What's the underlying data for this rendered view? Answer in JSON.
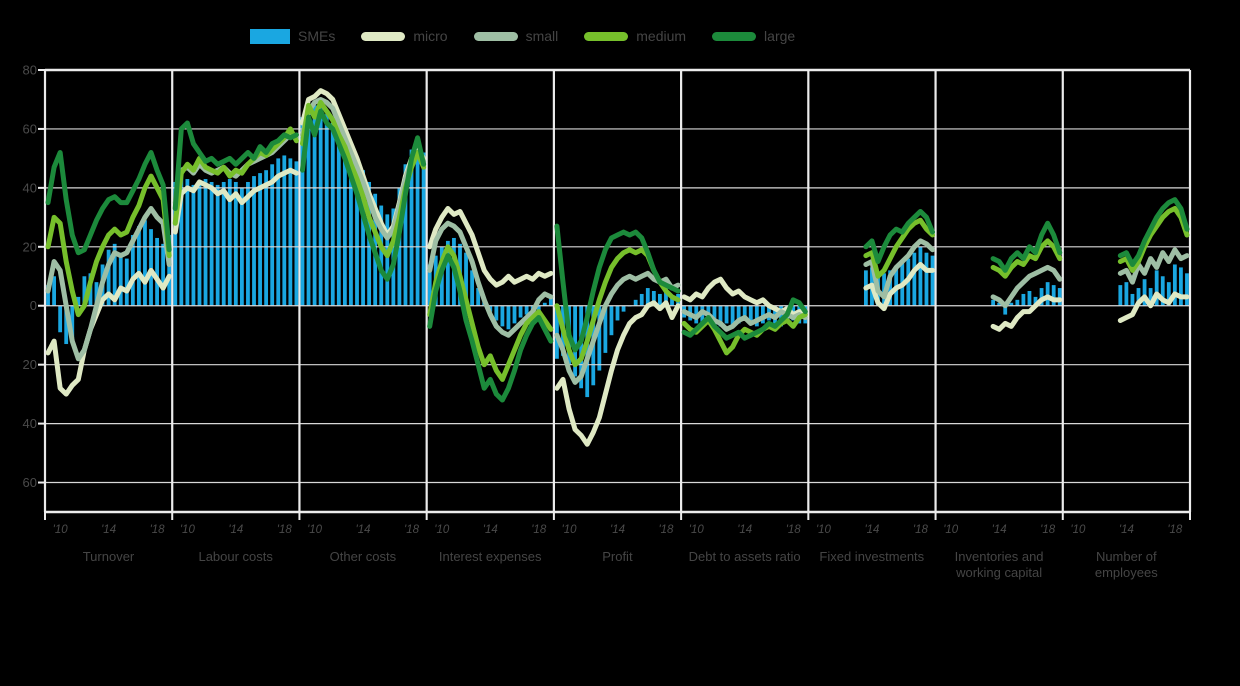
{
  "chart_data": {
    "type": "bar+line small multiples",
    "legend": [
      {
        "label": "SMEs",
        "color": "#1aa7e1",
        "swatch": "bar"
      },
      {
        "label": "micro",
        "color": "#dfe9c4",
        "swatch": "line"
      },
      {
        "label": "small",
        "color": "#9ebea4",
        "swatch": "line"
      },
      {
        "label": "medium",
        "color": "#76bf2b",
        "swatch": "line"
      },
      {
        "label": "large",
        "color": "#1c8a3b",
        "swatch": "line"
      }
    ],
    "colors": {
      "SMEs": "#1aa7e1",
      "micro": "#dfe9c4",
      "small": "#9ebea4",
      "medium": "#76bf2b",
      "large": "#1c8a3b",
      "grid": "#d8d8d8",
      "border": "#ececec",
      "axis_text": "#4a4a4a",
      "background": "#000000"
    },
    "y_axis": {
      "min": -70,
      "max": 80,
      "tick_values": [
        80,
        60,
        40,
        20,
        0,
        -20,
        -40,
        -60
      ],
      "tick_labels": [
        "80",
        "60",
        "40",
        "20",
        "0",
        "20",
        "40",
        "60"
      ]
    },
    "x_ticks": [
      {
        "label": "'10",
        "index": 2
      },
      {
        "label": "'14",
        "index": 10
      },
      {
        "label": "'18",
        "index": 18
      }
    ],
    "n_points": 21,
    "panels": [
      {
        "title": "Turnover",
        "SMEs": [
          7,
          10,
          -9,
          -13,
          -11,
          3,
          10,
          11,
          8,
          14,
          19,
          21,
          18,
          16,
          24,
          27,
          29,
          26,
          23,
          21,
          24
        ],
        "micro": [
          -16,
          -12,
          -28,
          -30,
          -27,
          -25,
          -15,
          -8,
          -3,
          2,
          4,
          2,
          6,
          5,
          9,
          11,
          8,
          12,
          9,
          6,
          10
        ],
        "small": [
          5,
          15,
          12,
          0,
          -12,
          -18,
          -15,
          -8,
          0,
          8,
          14,
          18,
          17,
          18,
          22,
          26,
          30,
          33,
          30,
          28,
          14
        ],
        "medium": [
          20,
          30,
          28,
          15,
          5,
          -3,
          0,
          8,
          15,
          20,
          24,
          26,
          24,
          25,
          30,
          34,
          40,
          44,
          40,
          36,
          17
        ],
        "large": [
          35,
          47,
          52,
          36,
          24,
          18,
          19,
          24,
          29,
          33,
          36,
          37,
          35,
          35,
          39,
          43,
          48,
          52,
          46,
          41,
          19
        ]
      },
      {
        "title": "Labour costs",
        "SMEs": [
          42,
          44,
          43,
          41,
          42,
          43,
          42,
          41,
          42,
          43,
          42,
          40,
          42,
          44,
          45,
          46,
          48,
          50,
          51,
          50,
          49
        ],
        "micro": [
          25,
          38,
          40,
          39,
          42,
          41,
          40,
          38,
          39,
          36,
          38,
          35,
          37,
          39,
          40,
          41,
          42,
          44,
          45,
          46,
          45
        ],
        "small": [
          35,
          46,
          47,
          45,
          48,
          46,
          45,
          46,
          47,
          45,
          44,
          46,
          48,
          49,
          50,
          51,
          52,
          54,
          56,
          58,
          57
        ],
        "medium": [
          28,
          45,
          48,
          46,
          50,
          47,
          46,
          45,
          47,
          44,
          46,
          45,
          48,
          50,
          52,
          51,
          53,
          55,
          57,
          60,
          56
        ],
        "large": [
          33,
          60,
          62,
          55,
          52,
          49,
          50,
          48,
          49,
          50,
          48,
          50,
          52,
          50,
          54,
          52,
          55,
          56,
          58,
          57,
          58
        ]
      },
      {
        "title": "Other costs",
        "SMEs": [
          64,
          66,
          68,
          67,
          65,
          62,
          59,
          57,
          54,
          50,
          46,
          42,
          38,
          34,
          31,
          33,
          40,
          48,
          53,
          55,
          52
        ],
        "micro": [
          62,
          70,
          71,
          73,
          72,
          70,
          65,
          60,
          55,
          50,
          44,
          38,
          33,
          28,
          24,
          27,
          35,
          44,
          50,
          53,
          50
        ],
        "small": [
          58,
          66,
          69,
          70,
          69,
          67,
          62,
          57,
          52,
          47,
          42,
          36,
          30,
          26,
          23,
          26,
          34,
          43,
          49,
          52,
          49
        ],
        "medium": [
          55,
          68,
          64,
          69,
          66,
          63,
          58,
          54,
          48,
          43,
          37,
          30,
          25,
          20,
          17,
          22,
          30,
          40,
          47,
          52,
          47
        ],
        "large": [
          46,
          64,
          58,
          66,
          62,
          60,
          55,
          50,
          44,
          38,
          31,
          24,
          18,
          12,
          9,
          14,
          25,
          38,
          50,
          57,
          48
        ]
      },
      {
        "title": "Interest expenses",
        "SMEs": [
          14,
          17,
          20,
          22,
          23,
          21,
          18,
          12,
          6,
          2,
          -2,
          -5,
          -7,
          -8,
          -6,
          -4,
          -3,
          -2,
          -2,
          1,
          3
        ],
        "micro": [
          20,
          26,
          30,
          33,
          31,
          32,
          28,
          24,
          18,
          12,
          9,
          7,
          8,
          10,
          8,
          9,
          10,
          9,
          11,
          10,
          11
        ],
        "small": [
          12,
          22,
          26,
          28,
          27,
          25,
          20,
          15,
          8,
          2,
          -3,
          -7,
          -9,
          -10,
          -8,
          -6,
          -4,
          -2,
          2,
          4,
          3
        ],
        "medium": [
          -3,
          8,
          15,
          20,
          17,
          10,
          2,
          -6,
          -14,
          -20,
          -17,
          -22,
          -25,
          -20,
          -15,
          -10,
          -6,
          -4,
          -2,
          -5,
          -8
        ],
        "large": [
          -7,
          5,
          12,
          17,
          13,
          5,
          -5,
          -12,
          -20,
          -28,
          -25,
          -30,
          -32,
          -28,
          -22,
          -15,
          -10,
          -6,
          -4,
          -8,
          -12
        ]
      },
      {
        "title": "Profit",
        "SMEs": [
          -18,
          -17,
          -20,
          -24,
          -28,
          -31,
          -27,
          -22,
          -16,
          -10,
          -5,
          -2,
          0,
          2,
          4,
          6,
          5,
          4,
          6,
          3,
          4
        ],
        "micro": [
          -28,
          -25,
          -35,
          -42,
          -44,
          -47,
          -43,
          -38,
          -30,
          -22,
          -15,
          -10,
          -6,
          -4,
          -3,
          0,
          1,
          -1,
          1,
          -4,
          0
        ],
        "small": [
          -10,
          -15,
          -22,
          -26,
          -24,
          -18,
          -12,
          -6,
          0,
          4,
          7,
          9,
          10,
          9,
          10,
          11,
          9,
          8,
          9,
          6,
          7
        ],
        "medium": [
          0,
          -8,
          -15,
          -20,
          -18,
          -12,
          -5,
          2,
          8,
          13,
          16,
          18,
          19,
          18,
          19,
          17,
          12,
          8,
          5,
          3,
          2
        ],
        "large": [
          27,
          8,
          -10,
          -15,
          -12,
          -4,
          5,
          13,
          19,
          23,
          24,
          25,
          24,
          25,
          23,
          18,
          12,
          8,
          7,
          6,
          5
        ]
      },
      {
        "title": "Debt to assets ratio",
        "SMEs": [
          -4,
          -5,
          -6,
          -7,
          -6,
          -8,
          -7,
          -6,
          -7,
          -6,
          -5,
          -6,
          -7,
          -6,
          -5,
          -6,
          -7,
          -6,
          -5,
          -6,
          -6
        ],
        "micro": [
          3,
          2,
          4,
          3,
          6,
          8,
          9,
          6,
          4,
          5,
          3,
          2,
          1,
          2,
          0,
          -1,
          -2,
          -1,
          -3,
          -2,
          -2
        ],
        "small": [
          -2,
          -3,
          -4,
          -2,
          -3,
          -5,
          -6,
          -8,
          -7,
          -5,
          -4,
          -6,
          -5,
          -4,
          -3,
          -4,
          -2,
          -3,
          -4,
          -3,
          -4
        ],
        "medium": [
          -6,
          -8,
          -9,
          -7,
          -5,
          -8,
          -12,
          -16,
          -14,
          -10,
          -8,
          -9,
          -10,
          -8,
          -7,
          -8,
          -6,
          -5,
          -7,
          -4,
          -3
        ],
        "large": [
          -9,
          -10,
          -8,
          -6,
          -4,
          -7,
          -9,
          -11,
          -10,
          -9,
          -11,
          -10,
          -9,
          -8,
          -6,
          -7,
          -5,
          -3,
          2,
          1,
          -2
        ]
      },
      {
        "title": "Fixed investments",
        "SMEs": [
          null,
          null,
          null,
          null,
          null,
          null,
          null,
          null,
          null,
          12,
          13,
          10,
          11,
          12,
          13,
          15,
          16,
          18,
          20,
          18,
          17
        ],
        "micro": [
          null,
          null,
          null,
          null,
          null,
          null,
          null,
          null,
          null,
          6,
          7,
          1,
          -1,
          4,
          6,
          7,
          9,
          12,
          14,
          12,
          12
        ],
        "small": [
          null,
          null,
          null,
          null,
          null,
          null,
          null,
          null,
          null,
          14,
          15,
          5,
          3,
          10,
          13,
          15,
          17,
          20,
          22,
          21,
          19
        ],
        "medium": [
          null,
          null,
          null,
          null,
          null,
          null,
          null,
          null,
          null,
          17,
          18,
          10,
          12,
          16,
          20,
          23,
          26,
          28,
          29,
          26,
          24
        ],
        "large": [
          null,
          null,
          null,
          null,
          null,
          null,
          null,
          null,
          null,
          20,
          22,
          15,
          20,
          24,
          26,
          25,
          28,
          30,
          32,
          30,
          25
        ]
      },
      {
        "title": "Inventories and working capital",
        "SMEs": [
          null,
          null,
          null,
          null,
          null,
          null,
          null,
          null,
          null,
          2,
          1,
          -3,
          1,
          2,
          4,
          5,
          3,
          6,
          8,
          7,
          6
        ],
        "micro": [
          null,
          null,
          null,
          null,
          null,
          null,
          null,
          null,
          null,
          -7,
          -8,
          -6,
          -7,
          -4,
          -2,
          -2,
          0,
          2,
          3,
          2,
          2
        ],
        "small": [
          null,
          null,
          null,
          null,
          null,
          null,
          null,
          null,
          null,
          3,
          2,
          0,
          3,
          6,
          8,
          10,
          11,
          12,
          13,
          12,
          9
        ],
        "medium": [
          null,
          null,
          null,
          null,
          null,
          null,
          null,
          null,
          null,
          13,
          12,
          10,
          13,
          15,
          14,
          17,
          16,
          20,
          22,
          20,
          16
        ],
        "large": [
          null,
          null,
          null,
          null,
          null,
          null,
          null,
          null,
          null,
          16,
          15,
          12,
          16,
          18,
          16,
          20,
          18,
          24,
          28,
          24,
          18
        ]
      },
      {
        "title": "Number of employees",
        "SMEs": [
          null,
          null,
          null,
          null,
          null,
          null,
          null,
          null,
          null,
          7,
          8,
          4,
          6,
          9,
          6,
          12,
          10,
          8,
          14,
          13,
          11
        ],
        "micro": [
          null,
          null,
          null,
          null,
          null,
          null,
          null,
          null,
          null,
          -5,
          -4,
          -3,
          1,
          3,
          0,
          4,
          2,
          1,
          4,
          3,
          3
        ],
        "small": [
          null,
          null,
          null,
          null,
          null,
          null,
          null,
          null,
          null,
          11,
          12,
          8,
          14,
          11,
          16,
          13,
          18,
          15,
          19,
          16,
          17
        ],
        "medium": [
          null,
          null,
          null,
          null,
          null,
          null,
          null,
          null,
          null,
          15,
          16,
          12,
          15,
          20,
          24,
          27,
          30,
          32,
          33,
          30,
          24
        ],
        "large": [
          null,
          null,
          null,
          null,
          null,
          null,
          null,
          null,
          null,
          17,
          18,
          14,
          17,
          22,
          26,
          30,
          33,
          35,
          36,
          33,
          26
        ]
      }
    ]
  }
}
